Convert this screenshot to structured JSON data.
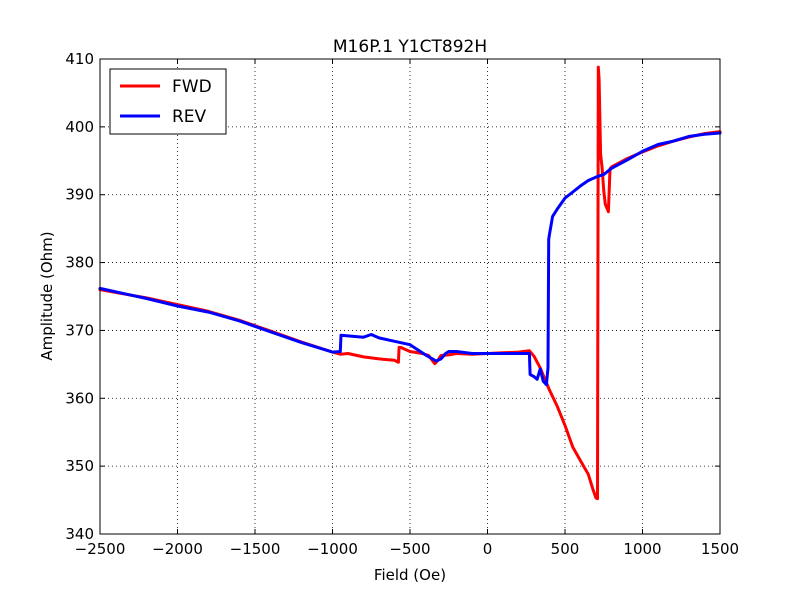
{
  "chart_data": {
    "type": "line",
    "title": "M16P.1   Y1CT892H",
    "xlabel": "Field (Oe)",
    "ylabel": "Amplitude (Ohm)",
    "xlim": [
      -2500,
      1500
    ],
    "ylim": [
      340,
      410
    ],
    "xticks": [
      -2500,
      -2000,
      -1500,
      -1000,
      -500,
      0,
      500,
      1000,
      1500
    ],
    "yticks": [
      340,
      350,
      360,
      370,
      380,
      390,
      400,
      410
    ],
    "xtick_labels": [
      "−2500",
      "−2000",
      "−1500",
      "−1000",
      "−500",
      "0",
      "500",
      "1000",
      "1500"
    ],
    "ytick_labels": [
      "340",
      "350",
      "360",
      "370",
      "380",
      "390",
      "400",
      "410"
    ],
    "grid": true,
    "legend_position": "top-left",
    "series": [
      {
        "name": "FWD",
        "color": "#ff0000",
        "x": [
          -2500,
          -2200,
          -2000,
          -1800,
          -1600,
          -1400,
          -1200,
          -1000,
          -950,
          -900,
          -800,
          -700,
          -600,
          -575,
          -570,
          -560,
          -500,
          -420,
          -380,
          -340,
          -320,
          -300,
          -250,
          -200,
          -100,
          0,
          100,
          200,
          270,
          300,
          340,
          370,
          400,
          450,
          500,
          550,
          600,
          650,
          680,
          700,
          710,
          715,
          720,
          730,
          740,
          750,
          760,
          780,
          790,
          800,
          900,
          1000,
          1100,
          1200,
          1300,
          1400,
          1500
        ],
        "y": [
          376.0,
          374.8,
          373.8,
          372.8,
          371.5,
          369.9,
          368.3,
          366.8,
          366.5,
          366.6,
          366.1,
          365.8,
          365.6,
          365.3,
          367.5,
          367.5,
          366.9,
          366.6,
          366.3,
          365.1,
          365.6,
          366.3,
          366.4,
          366.6,
          366.5,
          366.6,
          366.7,
          366.8,
          367.0,
          366.2,
          364.5,
          362.8,
          361.2,
          358.8,
          356.0,
          352.8,
          350.8,
          348.8,
          346.6,
          345.3,
          345.2,
          408.8,
          407.0,
          396.0,
          393.8,
          390.5,
          388.6,
          387.5,
          393.8,
          394.1,
          395.3,
          396.3,
          397.2,
          397.9,
          398.5,
          399.0,
          399.3
        ]
      },
      {
        "name": "REV",
        "color": "#0000ff",
        "x": [
          -2500,
          -2200,
          -2000,
          -1800,
          -1600,
          -1400,
          -1200,
          -1000,
          -950,
          -945,
          -900,
          -800,
          -750,
          -700,
          -600,
          -500,
          -400,
          -330,
          -300,
          -270,
          -250,
          -200,
          -100,
          0,
          100,
          200,
          270,
          275,
          300,
          320,
          340,
          360,
          380,
          390,
          395,
          400,
          420,
          450,
          500,
          550,
          600,
          650,
          700,
          750,
          800,
          900,
          1000,
          1100,
          1200,
          1300,
          1400,
          1500
        ],
        "y": [
          376.2,
          374.7,
          373.6,
          372.7,
          371.4,
          369.8,
          368.2,
          366.8,
          366.9,
          369.3,
          369.2,
          369.0,
          369.4,
          368.9,
          368.4,
          367.9,
          366.4,
          365.5,
          365.8,
          366.6,
          366.9,
          366.9,
          366.6,
          366.6,
          366.6,
          366.6,
          366.6,
          363.5,
          363.2,
          362.8,
          364.3,
          362.5,
          362.0,
          364.5,
          383.4,
          384.2,
          386.8,
          387.9,
          389.5,
          390.4,
          391.3,
          392.1,
          392.6,
          393.0,
          393.9,
          395.1,
          396.4,
          397.4,
          397.9,
          398.6,
          398.9,
          399.1
        ]
      }
    ]
  }
}
